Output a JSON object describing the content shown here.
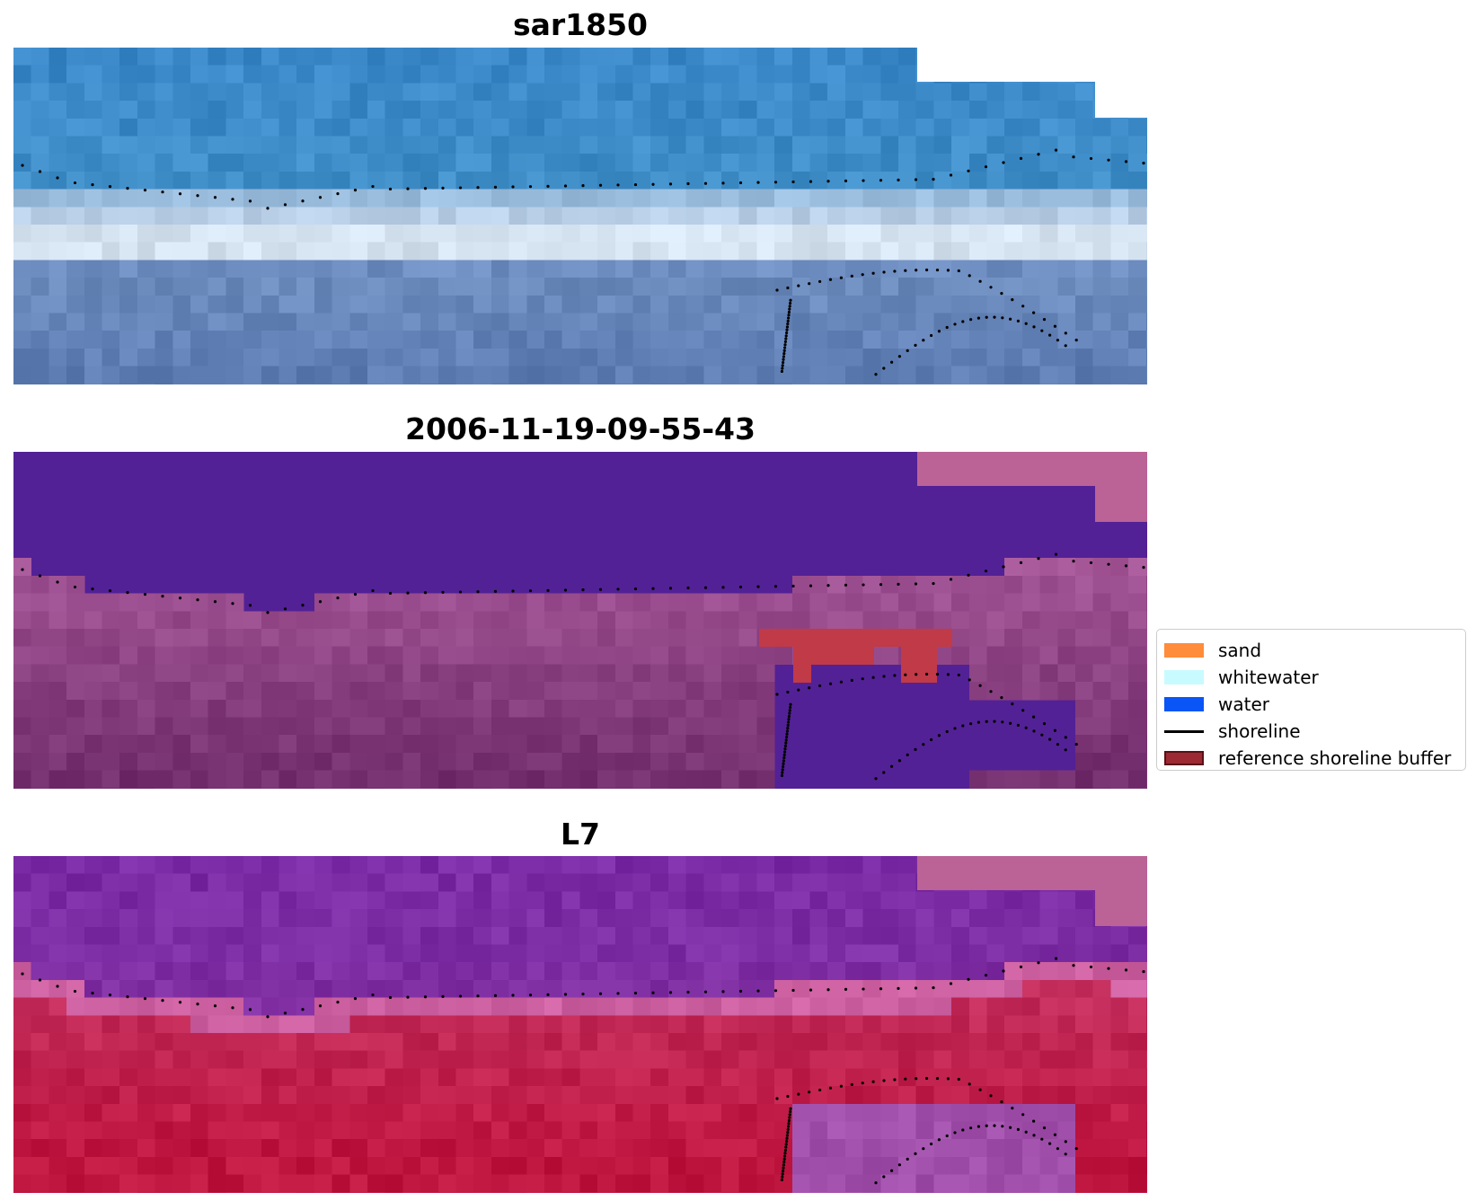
{
  "panels": [
    {
      "title": "sar1850"
    },
    {
      "title": "2006-11-19-09-55-43"
    },
    {
      "title": "L7"
    }
  ],
  "legend": {
    "items": [
      {
        "label": "sand",
        "color": "#ff8c3a",
        "kind": "patch"
      },
      {
        "label": "whitewater",
        "color": "#c8fbff",
        "kind": "patch"
      },
      {
        "label": "water",
        "color": "#0a55f5",
        "kind": "patch"
      },
      {
        "label": "shoreline",
        "color": "#000000",
        "kind": "line"
      },
      {
        "label": "reference shoreline buffer",
        "color": "#9b2a33",
        "kind": "patch"
      }
    ]
  },
  "colors": {
    "rgb_sky": "#3a88c8",
    "rgb_surf": "#e4ecf6",
    "rgb_shore": "#5a7ab0",
    "class_water": "#532196",
    "class_land": "#9a4a8e",
    "class_buffer": "#c13a47",
    "class_nodata": "#bb6296",
    "mndwi_high": "#7a2ba5",
    "mndwi_low": "#bf1640",
    "shoreline": "#000000"
  }
}
